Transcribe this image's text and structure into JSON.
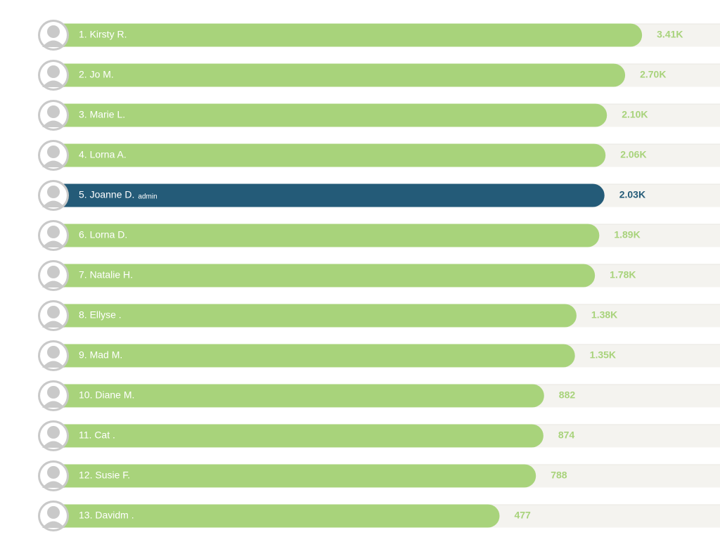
{
  "chart_data": {
    "type": "bar",
    "orientation": "horizontal",
    "categories": [
      "1. Kirsty R.",
      "2. Jo M.",
      "3. Marie L.",
      "4. Lorna A.",
      "5. Joanne D.",
      "6. Lorna D.",
      "7. Natalie H.",
      "8. Ellyse .",
      "9. Mad M.",
      "10. Diane M.",
      "11. Cat .",
      "12. Susie F.",
      "13. Davidm ."
    ],
    "values": [
      3410,
      2700,
      2100,
      2060,
      2030,
      1890,
      1780,
      1380,
      1350,
      882,
      874,
      788,
      477
    ],
    "value_labels": [
      "3.41K",
      "2.70K",
      "2.10K",
      "2.06K",
      "2.03K",
      "1.89K",
      "1.78K",
      "1.38K",
      "1.35K",
      "882",
      "874",
      "788",
      "477"
    ],
    "xlim": [
      1,
      10000
    ],
    "log_scale": true,
    "color": "#a8d37b",
    "highlight_index": 4,
    "highlight_color": "#245b78",
    "badge": {
      "index": 4,
      "text": "admin"
    }
  }
}
